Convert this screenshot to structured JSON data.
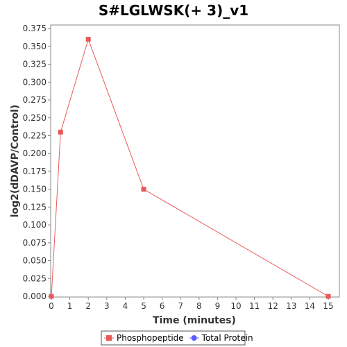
{
  "chart_data": {
    "type": "line",
    "title": "S#LGLWSK(+ 3)_v1",
    "xlabel": "Time (minutes)",
    "ylabel": "log2(dDAVP/Control)",
    "xlim": [
      0,
      15.6
    ],
    "ylim": [
      0,
      0.38
    ],
    "x_ticks": [
      "0",
      "1",
      "2",
      "3",
      "4",
      "5",
      "6",
      "7",
      "8",
      "9",
      "10",
      "11",
      "12",
      "13",
      "14",
      "15"
    ],
    "y_ticks": [
      "0.000",
      "0.025",
      "0.050",
      "0.075",
      "0.100",
      "0.125",
      "0.150",
      "0.175",
      "0.200",
      "0.225",
      "0.250",
      "0.275",
      "0.300",
      "0.325",
      "0.350",
      "0.375"
    ],
    "grid": false,
    "legend_position": "bottom",
    "series": [
      {
        "name": "Phosphopeptide",
        "color": "#e8595a",
        "marker": "square",
        "points": [
          {
            "x": 0,
            "y": 0.0
          },
          {
            "x": 0.5,
            "y": 0.23
          },
          {
            "x": 2,
            "y": 0.36
          },
          {
            "x": 5,
            "y": 0.15
          },
          {
            "x": 15,
            "y": 0.0
          }
        ]
      },
      {
        "name": "Total Protein",
        "color": "#5c5cff",
        "marker": "circle",
        "points": []
      }
    ]
  }
}
